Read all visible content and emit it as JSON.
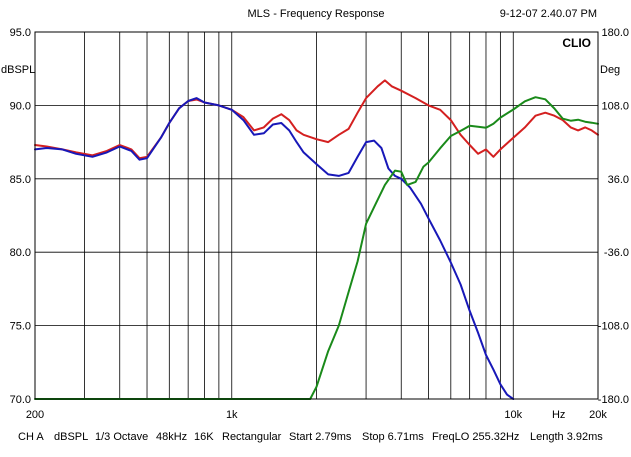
{
  "header": {
    "title": "MLS - Frequency Response",
    "timestamp": "9-12-07 2.40.07 PM",
    "brand": "CLIO"
  },
  "footer": {
    "channel": "CH A",
    "unit": "dBSPL",
    "smoothing": "1/3 Octave",
    "sample_rate": "48kHz",
    "size": "16K",
    "window": "Rectangular",
    "start": "Start 2.79ms",
    "stop": "Stop 6.71ms",
    "freq_lo": "FreqLO 255.32Hz",
    "length": "Length 3.92ms"
  },
  "colors": {
    "background": "#ffffff",
    "grid": "#000000",
    "red_trace": "#d42020",
    "blue_trace": "#1818b8",
    "green_trace": "#1a8a1a"
  },
  "chart_data": {
    "type": "line",
    "title": "MLS - Frequency Response",
    "xlabel": "Hz",
    "ylabel": "dBSPL",
    "y2label": "Deg",
    "x_scale": "log",
    "xlim": [
      200,
      20000
    ],
    "ylim": [
      70,
      95
    ],
    "y2lim": [
      -180,
      180
    ],
    "grid": true,
    "x_tick_labels": [
      {
        "value": 200,
        "label": "200"
      },
      {
        "value": 1000,
        "label": "1k"
      },
      {
        "value": 10000,
        "label": "10k"
      },
      {
        "value": 14500,
        "label": "Hz"
      },
      {
        "value": 20000,
        "label": "20k"
      }
    ],
    "y_ticks": [
      {
        "value": 95,
        "label": "95.0"
      },
      {
        "value": 90,
        "label": "90.0"
      },
      {
        "value": 85,
        "label": "85.0"
      },
      {
        "value": 80,
        "label": "80.0"
      },
      {
        "value": 75,
        "label": "75.0"
      },
      {
        "value": 70,
        "label": "70.0"
      }
    ],
    "y2_ticks": [
      {
        "value": 180,
        "label": "180.0"
      },
      {
        "value": 108,
        "label": "108.0"
      },
      {
        "value": 36,
        "label": "36.0"
      },
      {
        "value": -36,
        "label": "-36.0"
      },
      {
        "value": -108,
        "label": "-108.0"
      },
      {
        "value": -180,
        "label": "-180.0"
      }
    ],
    "series": [
      {
        "color": "#d42020",
        "axis": "left",
        "points": [
          [
            200,
            87.3
          ],
          [
            220,
            87.2
          ],
          [
            250,
            87.0
          ],
          [
            280,
            86.8
          ],
          [
            320,
            86.6
          ],
          [
            360,
            86.9
          ],
          [
            400,
            87.3
          ],
          [
            440,
            87.0
          ],
          [
            470,
            86.4
          ],
          [
            500,
            86.5
          ],
          [
            560,
            87.8
          ],
          [
            600,
            88.8
          ],
          [
            650,
            89.8
          ],
          [
            700,
            90.3
          ],
          [
            750,
            90.4
          ],
          [
            800,
            90.2
          ],
          [
            900,
            90.0
          ],
          [
            1000,
            89.7
          ],
          [
            1100,
            89.2
          ],
          [
            1200,
            88.3
          ],
          [
            1300,
            88.5
          ],
          [
            1400,
            89.1
          ],
          [
            1500,
            89.4
          ],
          [
            1600,
            89.0
          ],
          [
            1700,
            88.3
          ],
          [
            1800,
            88.0
          ],
          [
            2000,
            87.7
          ],
          [
            2200,
            87.5
          ],
          [
            2400,
            88.0
          ],
          [
            2600,
            88.4
          ],
          [
            2800,
            89.5
          ],
          [
            3000,
            90.5
          ],
          [
            3300,
            91.3
          ],
          [
            3500,
            91.7
          ],
          [
            3700,
            91.3
          ],
          [
            4000,
            91.0
          ],
          [
            4500,
            90.5
          ],
          [
            5000,
            90.0
          ],
          [
            5500,
            89.7
          ],
          [
            6000,
            89.0
          ],
          [
            6500,
            88.0
          ],
          [
            7000,
            87.3
          ],
          [
            7500,
            86.7
          ],
          [
            8000,
            87.0
          ],
          [
            8500,
            86.5
          ],
          [
            9000,
            87.0
          ],
          [
            10000,
            87.8
          ],
          [
            11000,
            88.5
          ],
          [
            12000,
            89.3
          ],
          [
            13000,
            89.5
          ],
          [
            14000,
            89.3
          ],
          [
            15000,
            89.0
          ],
          [
            16000,
            88.5
          ],
          [
            17000,
            88.3
          ],
          [
            18000,
            88.5
          ],
          [
            19000,
            88.3
          ],
          [
            20000,
            88.0
          ]
        ]
      },
      {
        "color": "#1818b8",
        "axis": "left",
        "points": [
          [
            200,
            87.0
          ],
          [
            220,
            87.1
          ],
          [
            250,
            87.0
          ],
          [
            280,
            86.7
          ],
          [
            320,
            86.5
          ],
          [
            360,
            86.8
          ],
          [
            400,
            87.2
          ],
          [
            440,
            86.9
          ],
          [
            470,
            86.3
          ],
          [
            500,
            86.4
          ],
          [
            560,
            87.8
          ],
          [
            600,
            88.8
          ],
          [
            650,
            89.8
          ],
          [
            700,
            90.3
          ],
          [
            750,
            90.5
          ],
          [
            800,
            90.2
          ],
          [
            900,
            90.0
          ],
          [
            1000,
            89.7
          ],
          [
            1100,
            89.0
          ],
          [
            1200,
            88.0
          ],
          [
            1300,
            88.1
          ],
          [
            1400,
            88.7
          ],
          [
            1500,
            88.8
          ],
          [
            1600,
            88.3
          ],
          [
            1700,
            87.5
          ],
          [
            1800,
            86.8
          ],
          [
            2000,
            86.0
          ],
          [
            2200,
            85.3
          ],
          [
            2400,
            85.2
          ],
          [
            2600,
            85.4
          ],
          [
            2800,
            86.5
          ],
          [
            3000,
            87.5
          ],
          [
            3200,
            87.6
          ],
          [
            3400,
            87.1
          ],
          [
            3600,
            85.7
          ],
          [
            3800,
            85.2
          ],
          [
            4000,
            85.0
          ],
          [
            4300,
            84.4
          ],
          [
            4700,
            83.3
          ],
          [
            5000,
            82.3
          ],
          [
            5500,
            80.8
          ],
          [
            6000,
            79.3
          ],
          [
            6500,
            77.8
          ],
          [
            7000,
            76.0
          ],
          [
            7500,
            74.5
          ],
          [
            8000,
            73.0
          ],
          [
            8500,
            72.0
          ],
          [
            9000,
            71.0
          ],
          [
            9500,
            70.3
          ],
          [
            10000,
            70.0
          ]
        ]
      },
      {
        "color": "#1a8a1a",
        "axis": "right",
        "points": [
          [
            200,
            -180
          ],
          [
            1900,
            -180
          ],
          [
            2000,
            -168
          ],
          [
            2200,
            -133
          ],
          [
            2400,
            -108
          ],
          [
            2600,
            -75
          ],
          [
            2800,
            -45
          ],
          [
            3000,
            -8
          ],
          [
            3200,
            8
          ],
          [
            3500,
            30
          ],
          [
            3800,
            44
          ],
          [
            4000,
            43
          ],
          [
            4200,
            30
          ],
          [
            4500,
            33
          ],
          [
            4800,
            48
          ],
          [
            5000,
            52
          ],
          [
            5500,
            66
          ],
          [
            6000,
            78
          ],
          [
            6500,
            83
          ],
          [
            7000,
            88
          ],
          [
            7500,
            87
          ],
          [
            8000,
            86
          ],
          [
            8500,
            90
          ],
          [
            9000,
            96
          ],
          [
            10000,
            104
          ],
          [
            11000,
            112
          ],
          [
            12000,
            116
          ],
          [
            13000,
            114
          ],
          [
            14000,
            105
          ],
          [
            15000,
            95
          ],
          [
            16000,
            93
          ],
          [
            17000,
            94
          ],
          [
            18000,
            92
          ],
          [
            19000,
            91
          ],
          [
            20000,
            90
          ]
        ]
      }
    ]
  }
}
